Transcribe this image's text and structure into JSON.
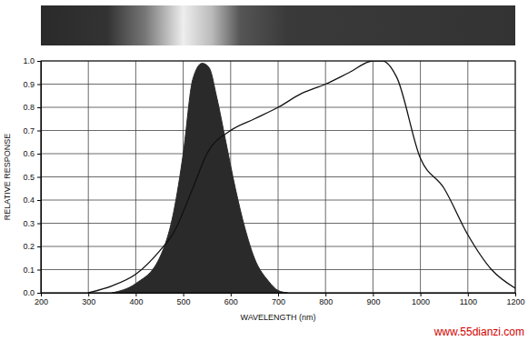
{
  "chart_data": {
    "type": "line",
    "x_label": "WAVELENGTH (nm)",
    "y_label": "RELATIVE RESPONSE",
    "xlim": [
      200,
      1200
    ],
    "xticks": [
      200,
      300,
      400,
      500,
      600,
      700,
      800,
      900,
      1000,
      1100,
      1200
    ],
    "ylim": [
      0,
      1
    ],
    "yticks": [
      {
        "value": 0,
        "label": "0.0"
      },
      0.1,
      0.2,
      0.3,
      0.4,
      0.5,
      0.6,
      0.7,
      0.8,
      0.9,
      {
        "value": 1,
        "label": "1.0"
      }
    ],
    "grid": true,
    "series": [
      {
        "type": "area",
        "color": "#2a2a2a",
        "x": [
          350,
          400,
          450,
          480,
          500,
          520,
          540,
          555,
          570,
          590,
          610,
          630,
          650,
          680,
          700,
          720
        ],
        "values": [
          0,
          0.04,
          0.15,
          0.35,
          0.6,
          0.92,
          0.99,
          0.97,
          0.85,
          0.65,
          0.45,
          0.28,
          0.15,
          0.05,
          0.01,
          0
        ]
      },
      {
        "type": "line",
        "color": "#111111",
        "x": [
          300,
          350,
          400,
          450,
          480,
          520,
          550,
          600,
          650,
          700,
          750,
          800,
          850,
          900,
          920,
          950,
          1000,
          1050,
          1100,
          1150,
          1200
        ],
        "values": [
          0,
          0.03,
          0.08,
          0.18,
          0.26,
          0.45,
          0.6,
          0.7,
          0.75,
          0.8,
          0.86,
          0.9,
          0.95,
          1.0,
          1.0,
          0.93,
          0.58,
          0.45,
          0.25,
          0.1,
          0.02
        ]
      }
    ],
    "annotations": [
      {
        "text": "www.55dianzi.com"
      }
    ]
  }
}
